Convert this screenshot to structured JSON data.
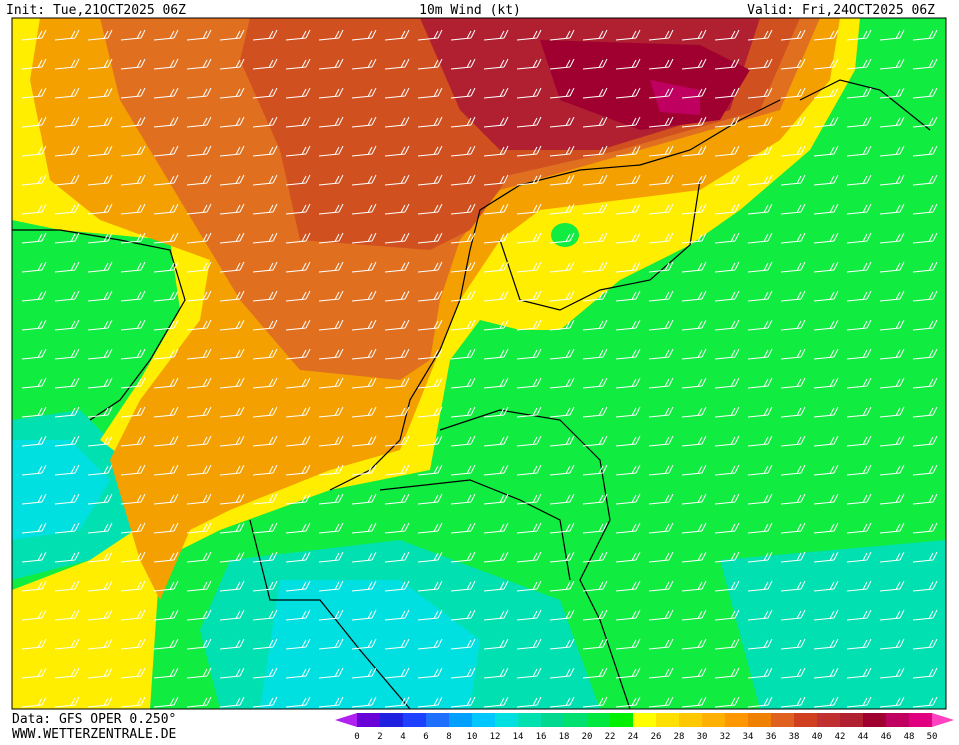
{
  "header": {
    "init": "Init: Tue,21OCT2025 06Z",
    "title": "10m Wind (kt)",
    "valid": "Valid: Fri,24OCT2025 06Z"
  },
  "footer": {
    "source": "Data: GFS OPER 0.250°",
    "website": "WWW.WETTERZENTRALE.DE"
  },
  "colorbar": {
    "ticks": [
      0,
      2,
      4,
      6,
      8,
      10,
      12,
      14,
      16,
      18,
      20,
      22,
      24,
      26,
      28,
      30,
      32,
      34,
      36,
      38,
      40,
      42,
      44,
      46,
      48,
      50
    ],
    "colors": [
      "#b020f0",
      "#6a00d8",
      "#2020e0",
      "#2040ff",
      "#2070ff",
      "#00a0ff",
      "#00c8ff",
      "#00e0e0",
      "#00e0b0",
      "#00d890",
      "#00e070",
      "#00e840",
      "#00f000",
      "#ffff00",
      "#ffe000",
      "#ffc800",
      "#ffb000",
      "#ff9800",
      "#f08000",
      "#e06020",
      "#d04020",
      "#c03030",
      "#b02030",
      "#a00030",
      "#c00060",
      "#e00080",
      "#ff40c0"
    ]
  }
}
